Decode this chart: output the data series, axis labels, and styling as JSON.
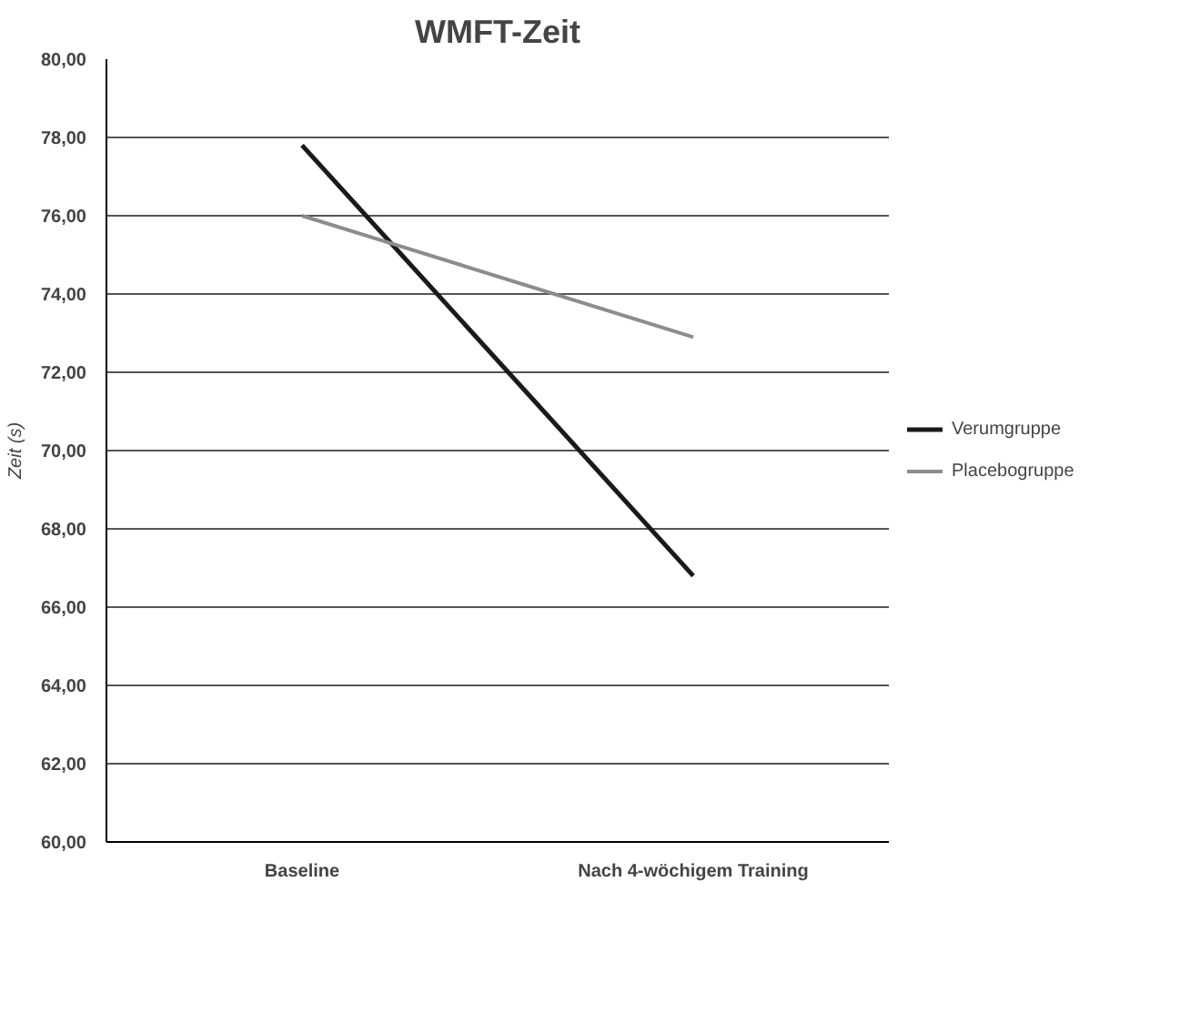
{
  "chart_data": {
    "type": "line",
    "title": "WMFT-Zeit",
    "ylabel": "Zeit (s)",
    "categories": [
      "Baseline",
      "Nach 4-wöchigem Training"
    ],
    "series": [
      {
        "name": "Verumgruppe",
        "color": "#1a1a1a",
        "values": [
          77.8,
          66.8
        ]
      },
      {
        "name": "Placebogruppe",
        "color": "#8c8c8c",
        "values": [
          76.0,
          72.9
        ]
      }
    ],
    "ylim": [
      60,
      80
    ],
    "yticks": [
      {
        "value": 60,
        "label": "60,00"
      },
      {
        "value": 62,
        "label": "62,00"
      },
      {
        "value": 64,
        "label": "64,00"
      },
      {
        "value": 66,
        "label": "66,00"
      },
      {
        "value": 68,
        "label": "68,00"
      },
      {
        "value": 70,
        "label": "70,00"
      },
      {
        "value": 72,
        "label": "72,00"
      },
      {
        "value": 74,
        "label": "74,00"
      },
      {
        "value": 76,
        "label": "76,00"
      },
      {
        "value": 78,
        "label": "78,00"
      },
      {
        "value": 80,
        "label": "80,00"
      }
    ],
    "grid": "y",
    "legend": "right",
    "marker": "none",
    "line_style": "solid"
  }
}
